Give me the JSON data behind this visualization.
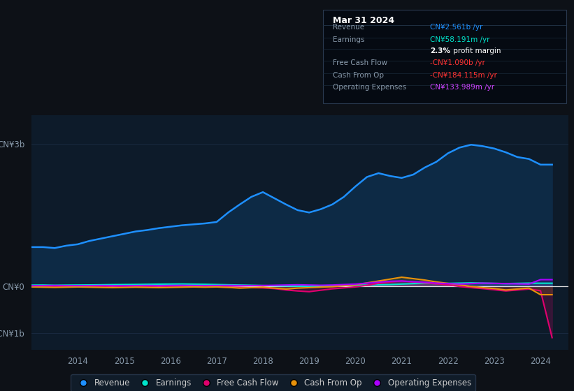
{
  "bg_color": "#0d1117",
  "plot_bg_color": "#0d1b2a",
  "yticks_labels": [
    "CN¥3b",
    "CN¥0",
    "-CN¥1b"
  ],
  "yticks_values": [
    3000000000.0,
    0,
    -1000000000.0
  ],
  "ylim": [
    -1350000000.0,
    3600000000.0
  ],
  "xlim": [
    2013.0,
    2024.6
  ],
  "xtick_labels": [
    "2014",
    "2015",
    "2016",
    "2017",
    "2018",
    "2019",
    "2020",
    "2021",
    "2022",
    "2023",
    "2024"
  ],
  "xtick_values": [
    2014,
    2015,
    2016,
    2017,
    2018,
    2019,
    2020,
    2021,
    2022,
    2023,
    2024
  ],
  "revenue_x": [
    2013.0,
    2013.25,
    2013.5,
    2013.75,
    2014.0,
    2014.25,
    2014.5,
    2014.75,
    2015.0,
    2015.25,
    2015.5,
    2015.75,
    2016.0,
    2016.25,
    2016.5,
    2016.75,
    2017.0,
    2017.25,
    2017.5,
    2017.75,
    2018.0,
    2018.25,
    2018.5,
    2018.75,
    2019.0,
    2019.25,
    2019.5,
    2019.75,
    2020.0,
    2020.25,
    2020.5,
    2020.75,
    2021.0,
    2021.25,
    2021.5,
    2021.75,
    2022.0,
    2022.25,
    2022.5,
    2022.75,
    2023.0,
    2023.25,
    2023.5,
    2023.75,
    2024.0,
    2024.25
  ],
  "revenue_y": [
    820000000.0,
    820000000.0,
    800000000.0,
    850000000.0,
    880000000.0,
    950000000.0,
    1000000000.0,
    1050000000.0,
    1100000000.0,
    1150000000.0,
    1180000000.0,
    1220000000.0,
    1250000000.0,
    1280000000.0,
    1300000000.0,
    1320000000.0,
    1350000000.0,
    1550000000.0,
    1720000000.0,
    1880000000.0,
    1980000000.0,
    1850000000.0,
    1720000000.0,
    1600000000.0,
    1550000000.0,
    1620000000.0,
    1720000000.0,
    1880000000.0,
    2100000000.0,
    2300000000.0,
    2380000000.0,
    2320000000.0,
    2280000000.0,
    2350000000.0,
    2500000000.0,
    2620000000.0,
    2800000000.0,
    2920000000.0,
    2980000000.0,
    2950000000.0,
    2900000000.0,
    2820000000.0,
    2720000000.0,
    2680000000.0,
    2560000000.0,
    2560000000.0
  ],
  "earnings_x": [
    2013.0,
    2013.25,
    2013.5,
    2013.75,
    2014.0,
    2014.25,
    2014.5,
    2014.75,
    2015.0,
    2015.25,
    2015.5,
    2015.75,
    2016.0,
    2016.25,
    2016.5,
    2016.75,
    2017.0,
    2017.25,
    2017.5,
    2017.75,
    2018.0,
    2018.25,
    2018.5,
    2018.75,
    2019.0,
    2019.25,
    2019.5,
    2019.75,
    2020.0,
    2020.25,
    2020.5,
    2020.75,
    2021.0,
    2021.25,
    2021.5,
    2021.75,
    2022.0,
    2022.25,
    2022.5,
    2022.75,
    2023.0,
    2023.25,
    2023.5,
    2023.75,
    2024.0,
    2024.25
  ],
  "earnings_y": [
    18000000.0,
    20000000.0,
    15000000.0,
    18000000.0,
    20000000.0,
    22000000.0,
    25000000.0,
    28000000.0,
    30000000.0,
    32000000.0,
    35000000.0,
    38000000.0,
    40000000.0,
    42000000.0,
    38000000.0,
    35000000.0,
    30000000.0,
    25000000.0,
    20000000.0,
    15000000.0,
    10000000.0,
    5000000.0,
    0.0,
    -5000000.0,
    -10000000.0,
    0.0,
    5000000.0,
    10000000.0,
    15000000.0,
    20000000.0,
    25000000.0,
    30000000.0,
    40000000.0,
    50000000.0,
    55000000.0,
    50000000.0,
    55000000.0,
    60000000.0,
    65000000.0,
    60000000.0,
    55000000.0,
    50000000.0,
    55000000.0,
    60000000.0,
    58000000.0,
    58000000.0
  ],
  "fcf_x": [
    2013.0,
    2013.25,
    2013.5,
    2013.75,
    2014.0,
    2014.25,
    2014.5,
    2014.75,
    2015.0,
    2015.25,
    2015.5,
    2015.75,
    2016.0,
    2016.25,
    2016.5,
    2016.75,
    2017.0,
    2017.25,
    2017.5,
    2017.75,
    2018.0,
    2018.25,
    2018.5,
    2018.75,
    2019.0,
    2019.25,
    2019.5,
    2019.75,
    2020.0,
    2020.25,
    2020.5,
    2020.75,
    2021.0,
    2021.25,
    2021.5,
    2021.75,
    2022.0,
    2022.25,
    2022.5,
    2022.75,
    2023.0,
    2023.25,
    2023.5,
    2023.75,
    2024.0,
    2024.25
  ],
  "fcf_y": [
    -10000000.0,
    -15000000.0,
    -20000000.0,
    -15000000.0,
    -10000000.0,
    -15000000.0,
    -20000000.0,
    -25000000.0,
    -20000000.0,
    -15000000.0,
    -20000000.0,
    -25000000.0,
    -20000000.0,
    -15000000.0,
    -10000000.0,
    -15000000.0,
    -20000000.0,
    -25000000.0,
    -30000000.0,
    -35000000.0,
    -40000000.0,
    -55000000.0,
    -85000000.0,
    -105000000.0,
    -120000000.0,
    -90000000.0,
    -60000000.0,
    -40000000.0,
    -20000000.0,
    15000000.0,
    55000000.0,
    85000000.0,
    105000000.0,
    85000000.0,
    65000000.0,
    45000000.0,
    25000000.0,
    -10000000.0,
    -35000000.0,
    -55000000.0,
    -80000000.0,
    -105000000.0,
    -85000000.0,
    -65000000.0,
    -100000000.0,
    -1090000000.0
  ],
  "cfo_x": [
    2013.0,
    2013.25,
    2013.5,
    2013.75,
    2014.0,
    2014.25,
    2014.5,
    2014.75,
    2015.0,
    2015.25,
    2015.5,
    2015.75,
    2016.0,
    2016.25,
    2016.5,
    2016.75,
    2017.0,
    2017.25,
    2017.5,
    2017.75,
    2018.0,
    2018.25,
    2018.5,
    2018.75,
    2019.0,
    2019.25,
    2019.5,
    2019.75,
    2020.0,
    2020.25,
    2020.5,
    2020.75,
    2021.0,
    2021.25,
    2021.5,
    2021.75,
    2022.0,
    2022.25,
    2022.5,
    2022.75,
    2023.0,
    2023.25,
    2023.5,
    2023.75,
    2024.0,
    2024.25
  ],
  "cfo_y": [
    -20000000.0,
    -25000000.0,
    -30000000.0,
    -25000000.0,
    -20000000.0,
    -25000000.0,
    -30000000.0,
    -35000000.0,
    -30000000.0,
    -25000000.0,
    -30000000.0,
    -35000000.0,
    -30000000.0,
    -25000000.0,
    -20000000.0,
    -25000000.0,
    -20000000.0,
    -30000000.0,
    -45000000.0,
    -35000000.0,
    -25000000.0,
    -45000000.0,
    -65000000.0,
    -45000000.0,
    -35000000.0,
    -25000000.0,
    -15000000.0,
    5000000.0,
    25000000.0,
    65000000.0,
    105000000.0,
    145000000.0,
    185000000.0,
    155000000.0,
    125000000.0,
    85000000.0,
    55000000.0,
    25000000.0,
    -10000000.0,
    -35000000.0,
    -55000000.0,
    -85000000.0,
    -65000000.0,
    -45000000.0,
    -184000000.0,
    -184000000.0
  ],
  "opex_x": [
    2013.0,
    2013.25,
    2013.5,
    2013.75,
    2014.0,
    2014.25,
    2014.5,
    2014.75,
    2015.0,
    2015.25,
    2015.5,
    2015.75,
    2016.0,
    2016.25,
    2016.5,
    2016.75,
    2017.0,
    2017.25,
    2017.5,
    2017.75,
    2018.0,
    2018.25,
    2018.5,
    2018.75,
    2019.0,
    2019.25,
    2019.5,
    2019.75,
    2020.0,
    2020.25,
    2020.5,
    2020.75,
    2021.0,
    2021.25,
    2021.5,
    2021.75,
    2022.0,
    2022.25,
    2022.5,
    2022.75,
    2023.0,
    2023.25,
    2023.5,
    2023.75,
    2024.0,
    2024.25
  ],
  "opex_y": [
    5000000.0,
    8000000.0,
    10000000.0,
    8000000.0,
    6000000.0,
    8000000.0,
    10000000.0,
    8000000.0,
    6000000.0,
    8000000.0,
    10000000.0,
    8000000.0,
    10000000.0,
    12000000.0,
    10000000.0,
    8000000.0,
    10000000.0,
    12000000.0,
    10000000.0,
    8000000.0,
    10000000.0,
    15000000.0,
    20000000.0,
    25000000.0,
    20000000.0,
    15000000.0,
    20000000.0,
    30000000.0,
    40000000.0,
    60000000.0,
    80000000.0,
    100000000.0,
    105000000.0,
    90000000.0,
    80000000.0,
    60000000.0,
    50000000.0,
    40000000.0,
    50000000.0,
    60000000.0,
    55000000.0,
    50000000.0,
    45000000.0,
    40000000.0,
    134000000.0,
    134000000.0
  ],
  "rev_color": "#1e90ff",
  "rev_fill": "#0d2a45",
  "earn_color": "#00e5cc",
  "fcf_color": "#e0006e",
  "cfo_color": "#e8920a",
  "opex_color": "#aa00ff",
  "legend": [
    {
      "label": "Revenue",
      "color": "#1e90ff"
    },
    {
      "label": "Earnings",
      "color": "#00e5cc"
    },
    {
      "label": "Free Cash Flow",
      "color": "#e0006e"
    },
    {
      "label": "Cash From Op",
      "color": "#e8920a"
    },
    {
      "label": "Operating Expenses",
      "color": "#aa00ff"
    }
  ],
  "grid_color": "#1a2a40",
  "zero_line_color": "#e0e0e0",
  "info_box": {
    "bg": "#050a12",
    "border": "#2a3a50",
    "title": "Mar 31 2024",
    "title_color": "#ffffff",
    "rows": [
      {
        "label": "Revenue",
        "value": "CN¥2.561b /yr",
        "label_color": "#8899aa",
        "value_color": "#1e90ff"
      },
      {
        "label": "Earnings",
        "value": "CN¥58.191m /yr",
        "label_color": "#8899aa",
        "value_color": "#00e5cc"
      },
      {
        "label": "",
        "value": "2.3% profit margin",
        "label_color": "#8899aa",
        "value_color": "#ffffff",
        "bold_prefix": "2.3%"
      },
      {
        "label": "Free Cash Flow",
        "value": "-CN¥1.090b /yr",
        "label_color": "#8899aa",
        "value_color": "#ff3333"
      },
      {
        "label": "Cash From Op",
        "value": "-CN¥184.115m /yr",
        "label_color": "#8899aa",
        "value_color": "#ff3333"
      },
      {
        "label": "Operating Expenses",
        "value": "CN¥133.989m /yr",
        "label_color": "#8899aa",
        "value_color": "#cc44ff"
      }
    ]
  }
}
